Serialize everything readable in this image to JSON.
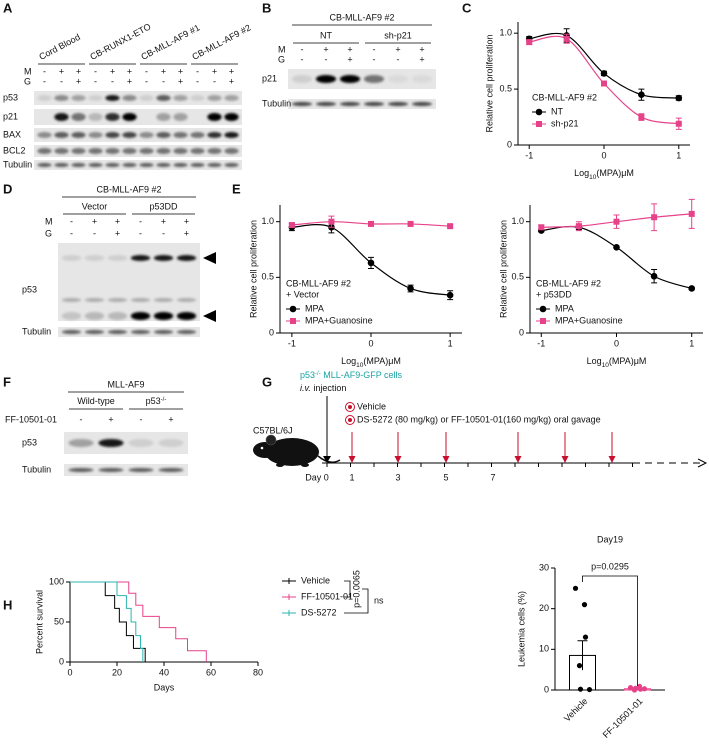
{
  "panel_labels": [
    "A",
    "B",
    "C",
    "D",
    "E",
    "F",
    "G",
    "H"
  ],
  "blot_a": {
    "columns": [
      "Cord Blood",
      "CB-RUNX1-ETO",
      "CB-MLL-AF9 #1",
      "CB-MLL-AF9 #2"
    ],
    "treatments": [
      {
        "name": "M",
        "signs": [
          "-",
          "+",
          "+",
          "-",
          "+",
          "+",
          "-",
          "+",
          "+",
          "-",
          "+",
          "+"
        ]
      },
      {
        "name": "G",
        "signs": [
          "-",
          "-",
          "+",
          "-",
          "-",
          "+",
          "-",
          "-",
          "+",
          "-",
          "-",
          "+"
        ]
      }
    ],
    "rows": [
      "p53",
      "p21",
      "BAX",
      "BCL2",
      "Tubulin"
    ]
  },
  "blot_b": {
    "title": "CB-MLL-AF9 #2",
    "groups": [
      "NT",
      "sh-p21"
    ],
    "treatments": [
      {
        "name": "M",
        "signs": [
          "-",
          "+",
          "+",
          "-",
          "+",
          "+"
        ]
      },
      {
        "name": "G",
        "signs": [
          "-",
          "-",
          "+",
          "-",
          "-",
          "+"
        ]
      }
    ],
    "rows": [
      "p21",
      "Tubulin"
    ]
  },
  "blot_d": {
    "title": "CB-MLL-AF9 #2",
    "groups": [
      "Vector",
      "p53DD"
    ],
    "treatments": [
      {
        "name": "M",
        "signs": [
          "-",
          "+",
          "+",
          "-",
          "+",
          "+"
        ]
      },
      {
        "name": "G",
        "signs": [
          "-",
          "-",
          "+",
          "-",
          "-",
          "+"
        ]
      }
    ],
    "rows": [
      "p53",
      "Tubulin"
    ]
  },
  "blot_f": {
    "title": "MLL-AF9",
    "groups": [
      {
        "text": "Wild-type"
      },
      {
        "text": "p53",
        "sup": "-/-"
      }
    ],
    "treatments": [
      {
        "name": "FF-10501-01",
        "signs": [
          "-",
          "+",
          "-",
          "+"
        ]
      }
    ],
    "rows": [
      "p53",
      "Tubulin"
    ]
  },
  "diagram_g": {
    "cells": {
      "gene": "p53",
      "sup": "-/-",
      "rest": " MLL-AF9-GFP cells"
    },
    "injection": {
      "route": "i.v.",
      "rest": " injection"
    },
    "strain": "C57BL/6J",
    "day0": "Day 0",
    "days": [
      "1",
      "3",
      "5",
      "7"
    ],
    "legend": [
      "Vehicle",
      "DS-5272 (80 mg/kg) or FF-10501-01(160 mg/kg) oral gavage"
    ]
  },
  "chart_data": [
    {
      "type": "dose_response",
      "ylabel": "Relative cell proliferation",
      "xlabel_parts": [
        "Log",
        "10",
        "(MPA)μM"
      ],
      "legend_title": [
        "CB-MLL-AF9 #2"
      ],
      "x": [
        -1,
        -0.5,
        0,
        0.5,
        1
      ],
      "xlim": [
        -1.15,
        1.15
      ],
      "ylim": [
        0,
        1.1
      ],
      "xticks": [
        -1,
        0,
        1
      ],
      "yticks": [
        0,
        0.5,
        {
          "value": 1,
          "label": "1.0"
        }
      ],
      "series": [
        {
          "name": "NT",
          "color": "#000000",
          "marker": "circle",
          "values": [
            0.95,
            0.98,
            0.64,
            0.45,
            0.42
          ],
          "errors": [
            0.02,
            0.06,
            0.02,
            0.05,
            0.02
          ]
        },
        {
          "name": "sh-p21",
          "color": "#e6428a",
          "marker": "square",
          "values": [
            0.92,
            0.95,
            0.55,
            0.25,
            0.19
          ],
          "errors": [
            0.02,
            0.04,
            0.02,
            0.03,
            0.05
          ]
        }
      ]
    },
    {
      "type": "dose_response",
      "ylabel": "Relative cell proliferation",
      "xlabel_parts": [
        "Log",
        "10",
        "(MPA)μM"
      ],
      "legend_title": [
        "CB-MLL-AF9 #2",
        "+ Vector"
      ],
      "x": [
        -1,
        -0.5,
        0,
        0.5,
        1
      ],
      "xlim": [
        -1.15,
        1.15
      ],
      "ylim": [
        0,
        1.15
      ],
      "xticks": [
        -1,
        0,
        1
      ],
      "yticks": [
        0,
        0.5,
        {
          "value": 1,
          "label": "1.0"
        }
      ],
      "series": [
        {
          "name": "MPA",
          "color": "#000000",
          "marker": "circle",
          "values": [
            0.95,
            0.95,
            0.63,
            0.4,
            0.34
          ],
          "errors": [
            0.03,
            0.05,
            0.05,
            0.03,
            0.04
          ]
        },
        {
          "name": "MPA+Guanosine",
          "color": "#e6428a",
          "marker": "square",
          "values": [
            0.97,
            1.0,
            0.98,
            0.98,
            0.96
          ],
          "errors": [
            0.02,
            0.05,
            0.02,
            0.02,
            0.01
          ]
        }
      ]
    },
    {
      "type": "dose_response",
      "ylabel": "Relative cell proliferation",
      "xlabel_parts": [
        "Log",
        "10",
        "(MPA)μM"
      ],
      "legend_title": [
        "CB-MLL-AF9 #2",
        "+ p53DD"
      ],
      "x": [
        -1,
        -0.5,
        0,
        0.5,
        1
      ],
      "xlim": [
        -1.15,
        1.15
      ],
      "ylim": [
        0,
        1.15
      ],
      "xticks": [
        -1,
        0,
        1
      ],
      "yticks": [
        0,
        0.5,
        {
          "value": 1,
          "label": "1.0"
        }
      ],
      "series": [
        {
          "name": "MPA",
          "color": "#000000",
          "marker": "circle",
          "values": [
            0.92,
            0.95,
            0.77,
            0.51,
            0.4
          ],
          "errors": [
            0.01,
            0.02,
            0.01,
            0.06,
            0.01
          ]
        },
        {
          "name": "MPA+Guanosine",
          "color": "#e6428a",
          "marker": "square",
          "values": [
            0.95,
            0.96,
            1.0,
            1.04,
            1.07
          ],
          "errors": [
            0.02,
            0.04,
            0.06,
            0.12,
            0.13
          ]
        }
      ]
    },
    {
      "type": "survival",
      "ylabel": "Percent survival",
      "xlabel": "Days",
      "xlim": [
        0,
        80
      ],
      "ylim": [
        0,
        100
      ],
      "xticks": [
        0,
        20,
        40,
        60,
        80
      ],
      "yticks": [
        0,
        50,
        100
      ],
      "annotations": [
        "p=0.0065",
        "ns"
      ],
      "series": [
        {
          "name": "Vehicle",
          "color": "#000000",
          "x": [
            0,
            15,
            19,
            21,
            24,
            27,
            32
          ],
          "values": [
            100,
            83,
            67,
            50,
            33,
            17,
            0
          ]
        },
        {
          "name": "FF-10501-01",
          "color": "#e6428a",
          "x": [
            0,
            25,
            28,
            31,
            38,
            45,
            50,
            58
          ],
          "values": [
            100,
            86,
            71,
            57,
            43,
            29,
            14,
            0
          ]
        },
        {
          "name": "DS-5272",
          "color": "#2bb5b0",
          "x": [
            0,
            20,
            24,
            26,
            28,
            30,
            31
          ],
          "values": [
            100,
            83,
            67,
            50,
            33,
            17,
            0
          ]
        }
      ]
    },
    {
      "type": "bar_dot",
      "title": "Day19",
      "ylabel": "Leukemia cells (%)",
      "categories": [
        "Vehicle",
        "FF-10501-01"
      ],
      "values": [
        8.5,
        0.3
      ],
      "errors": [
        3.6,
        0.15
      ],
      "points": [
        [
          25,
          21,
          13,
          6,
          0.2,
          0.1
        ],
        [
          0.6,
          0.9,
          0.2,
          0,
          0.4,
          0.3,
          0.5
        ]
      ],
      "colors": [
        "#000000",
        "#e6428a"
      ],
      "ylim": [
        0,
        30
      ],
      "yticks": [
        0,
        10,
        20,
        30
      ],
      "annotation": "p=0.0295"
    }
  ]
}
